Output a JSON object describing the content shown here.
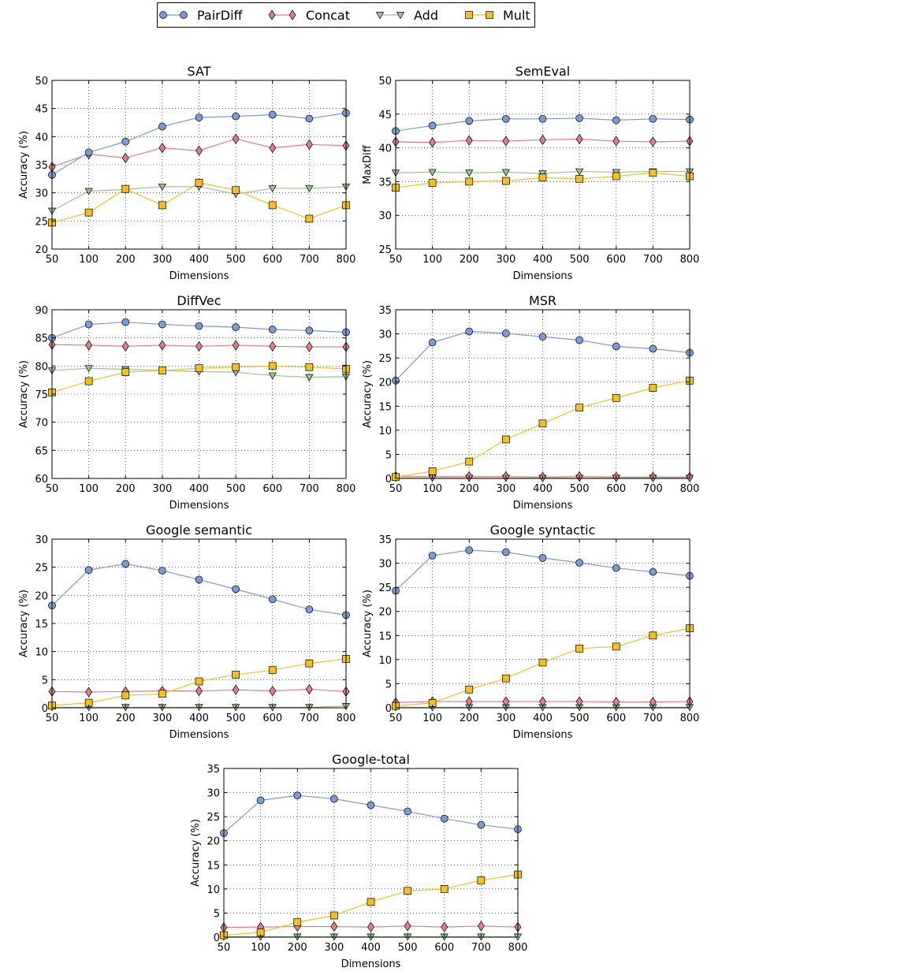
{
  "legend": {
    "items": [
      {
        "name": "PairDiff",
        "marker": "circle",
        "color": "#7b9ad6"
      },
      {
        "name": "Concat",
        "marker": "diamond",
        "color": "#e07d85"
      },
      {
        "name": "Add",
        "marker": "triangle-down",
        "color": "#9cc48e"
      },
      {
        "name": "Mult",
        "marker": "square",
        "color": "#f5bf1f"
      }
    ]
  },
  "chart_data": [
    {
      "id": "sat",
      "type": "line",
      "title": "SAT",
      "xlabel": "Dimensions",
      "ylabel": "Accuracy (%)",
      "categories": [
        "50",
        "100",
        "200",
        "300",
        "400",
        "500",
        "600",
        "700",
        "800"
      ],
      "ylim": [
        20,
        50
      ],
      "yticks": [
        20,
        25,
        30,
        35,
        40,
        45,
        50
      ],
      "grid": true,
      "series": [
        {
          "name": "PairDiff",
          "values": [
            33.2,
            37.2,
            39.1,
            41.8,
            43.4,
            43.6,
            43.9,
            43.2,
            44.2
          ]
        },
        {
          "name": "Concat",
          "values": [
            34.6,
            36.9,
            36.2,
            38.0,
            37.5,
            39.6,
            38.0,
            38.6,
            38.4
          ]
        },
        {
          "name": "Add",
          "values": [
            26.8,
            30.3,
            30.6,
            31.1,
            31.1,
            29.8,
            30.8,
            30.8,
            31.1
          ]
        },
        {
          "name": "Mult",
          "values": [
            24.7,
            26.5,
            30.7,
            27.8,
            31.8,
            30.5,
            27.8,
            25.4,
            27.8
          ]
        }
      ]
    },
    {
      "id": "semeval",
      "type": "line",
      "title": "SemEval",
      "xlabel": "Dimensions",
      "ylabel": "MaxDiff",
      "categories": [
        "50",
        "100",
        "200",
        "300",
        "400",
        "500",
        "600",
        "700",
        "800"
      ],
      "ylim": [
        25,
        50
      ],
      "yticks": [
        25,
        30,
        35,
        40,
        45,
        50
      ],
      "grid": true,
      "series": [
        {
          "name": "PairDiff",
          "values": [
            42.5,
            43.3,
            44.0,
            44.3,
            44.3,
            44.4,
            44.1,
            44.3,
            44.2
          ]
        },
        {
          "name": "Concat",
          "values": [
            40.9,
            40.8,
            41.1,
            41.0,
            41.2,
            41.3,
            41.0,
            40.9,
            41.0
          ]
        },
        {
          "name": "Add",
          "values": [
            36.3,
            36.4,
            36.3,
            36.4,
            36.2,
            36.5,
            36.4,
            36.5,
            36.5
          ]
        },
        {
          "name": "Mult",
          "values": [
            34.1,
            34.8,
            35.0,
            35.1,
            35.6,
            35.4,
            35.8,
            36.3,
            35.8
          ]
        }
      ]
    },
    {
      "id": "diffvec",
      "type": "line",
      "title": "DiffVec",
      "xlabel": "Dimensions",
      "ylabel": "Accuracy (%)",
      "categories": [
        "50",
        "100",
        "200",
        "300",
        "400",
        "500",
        "600",
        "700",
        "800"
      ],
      "ylim": [
        60,
        90
      ],
      "yticks": [
        60,
        65,
        70,
        75,
        80,
        85,
        90
      ],
      "grid": true,
      "series": [
        {
          "name": "PairDiff",
          "values": [
            85.0,
            87.4,
            87.8,
            87.4,
            87.1,
            86.9,
            86.5,
            86.3,
            86.0
          ]
        },
        {
          "name": "Concat",
          "values": [
            83.8,
            83.7,
            83.5,
            83.7,
            83.5,
            83.7,
            83.5,
            83.4,
            83.4
          ]
        },
        {
          "name": "Add",
          "values": [
            79.2,
            79.6,
            79.4,
            79.2,
            79.0,
            78.9,
            78.3,
            78.0,
            78.1
          ]
        },
        {
          "name": "Mult",
          "values": [
            75.3,
            77.3,
            78.9,
            79.2,
            79.6,
            79.8,
            80.0,
            79.8,
            79.5
          ]
        }
      ]
    },
    {
      "id": "msr",
      "type": "line",
      "title": "MSR",
      "xlabel": "Dimensions",
      "ylabel": "Accuracy (%)",
      "categories": [
        "50",
        "100",
        "200",
        "300",
        "400",
        "500",
        "600",
        "700",
        "800"
      ],
      "ylim": [
        0,
        35
      ],
      "yticks": [
        0,
        5,
        10,
        15,
        20,
        25,
        30,
        35
      ],
      "grid": true,
      "series": [
        {
          "name": "PairDiff",
          "values": [
            20.3,
            28.2,
            30.5,
            30.1,
            29.4,
            28.7,
            27.4,
            26.9,
            26.1
          ]
        },
        {
          "name": "Concat",
          "values": [
            0.4,
            0.4,
            0.4,
            0.4,
            0.3,
            0.4,
            0.3,
            0.3,
            0.3
          ]
        },
        {
          "name": "Add",
          "values": [
            0.1,
            0.1,
            0.1,
            0.1,
            0.1,
            0.1,
            0.1,
            0.1,
            0.1
          ]
        },
        {
          "name": "Mult",
          "values": [
            0.3,
            1.5,
            3.5,
            8.1,
            11.4,
            14.7,
            16.7,
            18.8,
            20.3
          ]
        }
      ]
    },
    {
      "id": "google-semantic",
      "type": "line",
      "title": "Google semantic",
      "xlabel": "Dimensions",
      "ylabel": "Accuracy (%)",
      "categories": [
        "50",
        "100",
        "200",
        "300",
        "400",
        "500",
        "600",
        "700",
        "800"
      ],
      "ylim": [
        0,
        30
      ],
      "yticks": [
        0,
        5,
        10,
        15,
        20,
        25,
        30
      ],
      "grid": true,
      "series": [
        {
          "name": "PairDiff",
          "values": [
            18.2,
            24.5,
            25.6,
            24.4,
            22.8,
            21.1,
            19.3,
            17.5,
            16.5
          ]
        },
        {
          "name": "Concat",
          "values": [
            2.9,
            2.8,
            2.9,
            3.0,
            3.0,
            3.2,
            3.0,
            3.3,
            2.9
          ]
        },
        {
          "name": "Add",
          "values": [
            0.1,
            0.1,
            0.1,
            0.1,
            0.1,
            0.1,
            0.1,
            0.1,
            0.3
          ]
        },
        {
          "name": "Mult",
          "values": [
            0.4,
            0.9,
            2.2,
            2.5,
            4.7,
            5.9,
            6.7,
            7.9,
            8.7
          ]
        }
      ]
    },
    {
      "id": "google-syntactic",
      "type": "line",
      "title": "Google syntactic",
      "xlabel": "Dimensions",
      "ylabel": "Accuracy (%)",
      "categories": [
        "50",
        "100",
        "200",
        "300",
        "400",
        "500",
        "600",
        "700",
        "800"
      ],
      "ylim": [
        0,
        35
      ],
      "yticks": [
        0,
        5,
        10,
        15,
        20,
        25,
        30,
        35
      ],
      "grid": true,
      "series": [
        {
          "name": "PairDiff",
          "values": [
            24.3,
            31.6,
            32.7,
            32.3,
            31.1,
            30.1,
            29.0,
            28.2,
            27.4
          ]
        },
        {
          "name": "Concat",
          "values": [
            1.1,
            1.3,
            1.3,
            1.3,
            1.3,
            1.3,
            1.2,
            1.2,
            1.3
          ]
        },
        {
          "name": "Add",
          "values": [
            0.1,
            0.1,
            0.1,
            0.1,
            0.1,
            0.1,
            0.1,
            0.1,
            0.1
          ]
        },
        {
          "name": "Mult",
          "values": [
            0.4,
            1.0,
            3.8,
            6.1,
            9.4,
            12.3,
            12.7,
            15.0,
            16.5
          ]
        }
      ]
    },
    {
      "id": "google-total",
      "type": "line",
      "title": "Google-total",
      "xlabel": "Dimensions",
      "ylabel": "Accuracy (%)",
      "categories": [
        "50",
        "100",
        "200",
        "300",
        "400",
        "500",
        "600",
        "700",
        "800"
      ],
      "ylim": [
        0,
        35
      ],
      "yticks": [
        0,
        5,
        10,
        15,
        20,
        25,
        30,
        35
      ],
      "grid": true,
      "series": [
        {
          "name": "PairDiff",
          "values": [
            21.6,
            28.4,
            29.4,
            28.7,
            27.4,
            26.1,
            24.6,
            23.3,
            22.4
          ]
        },
        {
          "name": "Concat",
          "values": [
            2.0,
            2.1,
            2.2,
            2.2,
            2.1,
            2.3,
            2.1,
            2.3,
            2.1
          ]
        },
        {
          "name": "Add",
          "values": [
            0.1,
            0.1,
            0.1,
            0.1,
            0.1,
            0.1,
            0.1,
            0.1,
            0.1
          ]
        },
        {
          "name": "Mult",
          "values": [
            0.4,
            1.0,
            3.1,
            4.5,
            7.3,
            9.6,
            10.0,
            11.8,
            13.0
          ]
        }
      ]
    }
  ]
}
